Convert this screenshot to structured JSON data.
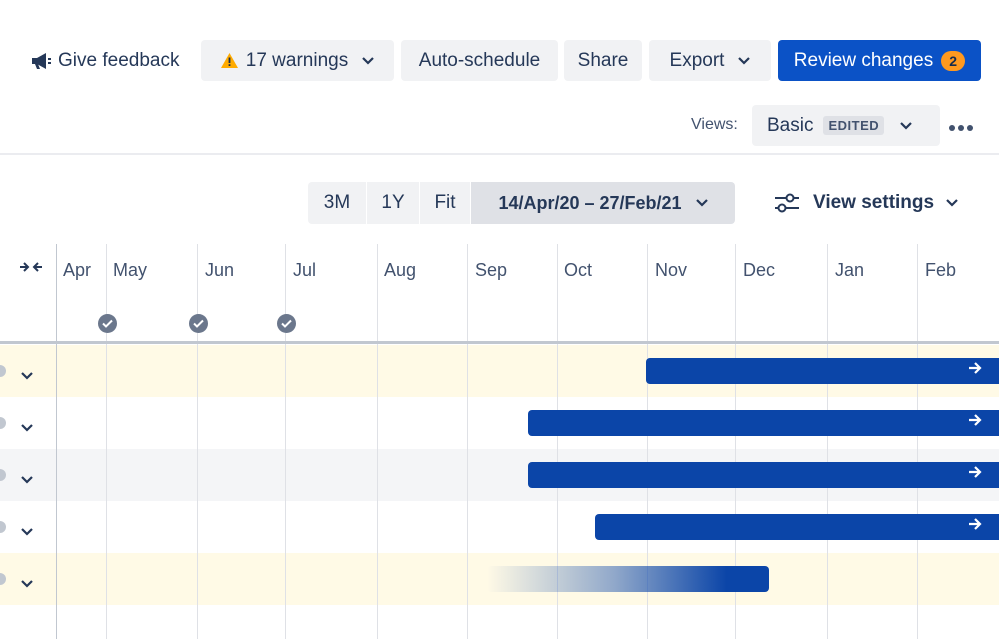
{
  "toolbar": {
    "feedback_label": "Give feedback",
    "warnings_label": "17 warnings",
    "auto_schedule_label": "Auto-schedule",
    "share_label": "Share",
    "export_label": "Export",
    "review_label": "Review changes",
    "review_count": "2"
  },
  "views": {
    "label": "Views:",
    "selected": "Basic",
    "badge": "EDITED"
  },
  "timeline": {
    "zoom_options": [
      "3M",
      "1Y",
      "Fit"
    ],
    "date_range": "14/Apr/20 – 27/Feb/21",
    "view_settings_label": "View settings",
    "months": [
      "Apr",
      "May",
      "Jun",
      "Jul",
      "Aug",
      "Sep",
      "Oct",
      "Nov",
      "Dec",
      "Jan",
      "Feb"
    ]
  },
  "colors": {
    "primary": "#0B52C6",
    "bar": "#0B45A8",
    "warning": "#FFAB00",
    "badge": "#FF991F",
    "highlight_row": "#FFFAE6",
    "alt_row": "#F4F5F7"
  }
}
